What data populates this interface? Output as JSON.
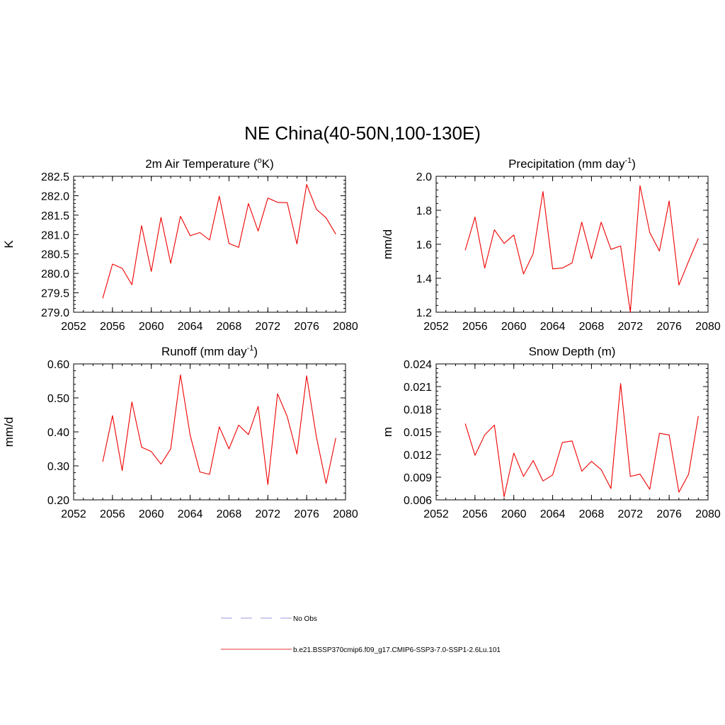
{
  "figure": {
    "title": "NE China(40-50N,100-130E)"
  },
  "legend": [
    {
      "label": "No Obs",
      "style": "dashed",
      "color": "#9999dd"
    },
    {
      "label": "b.e21.BSSP370cmip6.f09_g17.CMIP6-SSP3-7.0-SSP1-2.6Lu.101",
      "style": "solid",
      "color": "#ee3333"
    }
  ],
  "series_color": "#ee0000",
  "chart_data": [
    {
      "type": "line",
      "title_parts": [
        "2m Air Temperature (",
        "o",
        "K)"
      ],
      "ylabel": "K",
      "xlim": [
        2052,
        2080
      ],
      "xticks": [
        2052,
        2056,
        2060,
        2064,
        2068,
        2072,
        2076,
        2080
      ],
      "ylim": [
        279.0,
        282.5
      ],
      "yticks": [
        279.0,
        279.5,
        280.0,
        280.5,
        281.0,
        281.5,
        282.0,
        282.5
      ],
      "ytick_labels": [
        "279.0",
        "279.5",
        "280.0",
        "280.5",
        "281.0",
        "281.5",
        "282.0",
        "282.5"
      ],
      "x": [
        2055,
        2056,
        2057,
        2058,
        2059,
        2060,
        2061,
        2062,
        2063,
        2064,
        2065,
        2066,
        2067,
        2068,
        2069,
        2070,
        2071,
        2072,
        2073,
        2074,
        2075,
        2076,
        2077,
        2078,
        2079
      ],
      "values": [
        279.36,
        280.24,
        280.13,
        279.71,
        281.23,
        280.05,
        281.44,
        280.26,
        281.47,
        280.97,
        281.05,
        280.86,
        281.99,
        280.77,
        280.67,
        281.8,
        281.09,
        281.94,
        281.83,
        281.82,
        280.76,
        282.29,
        281.65,
        281.43,
        281.01
      ]
    },
    {
      "type": "line",
      "title_parts": [
        "Precipitation (mm day",
        "-1",
        ")"
      ],
      "ylabel": "mm/d",
      "xlim": [
        2052,
        2080
      ],
      "xticks": [
        2052,
        2056,
        2060,
        2064,
        2068,
        2072,
        2076,
        2080
      ],
      "ylim": [
        1.2,
        2.0
      ],
      "yticks": [
        1.2,
        1.4,
        1.6,
        1.8,
        2.0
      ],
      "ytick_labels": [
        "1.2",
        "1.4",
        "1.6",
        "1.8",
        "2.0"
      ],
      "x": [
        2055,
        2056,
        2057,
        2058,
        2059,
        2060,
        2061,
        2062,
        2063,
        2064,
        2065,
        2066,
        2067,
        2068,
        2069,
        2070,
        2071,
        2072,
        2073,
        2074,
        2075,
        2076,
        2077,
        2078,
        2079
      ],
      "values": [
        1.565,
        1.76,
        1.46,
        1.685,
        1.605,
        1.655,
        1.425,
        1.545,
        1.91,
        1.455,
        1.46,
        1.49,
        1.73,
        1.515,
        1.73,
        1.57,
        1.59,
        1.2,
        1.945,
        1.67,
        1.56,
        1.855,
        1.36,
        1.5,
        1.635
      ]
    },
    {
      "type": "line",
      "title_parts": [
        "Runoff (mm day",
        "-1",
        ")"
      ],
      "ylabel": "mm/d",
      "xlim": [
        2052,
        2080
      ],
      "xticks": [
        2052,
        2056,
        2060,
        2064,
        2068,
        2072,
        2076,
        2080
      ],
      "ylim": [
        0.2,
        0.6
      ],
      "yticks": [
        0.2,
        0.3,
        0.4,
        0.5,
        0.6
      ],
      "ytick_labels": [
        "0.20",
        "0.30",
        "0.40",
        "0.50",
        "0.60"
      ],
      "x": [
        2055,
        2056,
        2057,
        2058,
        2059,
        2060,
        2061,
        2062,
        2063,
        2064,
        2065,
        2066,
        2067,
        2068,
        2069,
        2070,
        2071,
        2072,
        2073,
        2074,
        2075,
        2076,
        2077,
        2078,
        2079
      ],
      "values": [
        0.312,
        0.448,
        0.286,
        0.488,
        0.355,
        0.342,
        0.305,
        0.35,
        0.568,
        0.39,
        0.282,
        0.275,
        0.415,
        0.35,
        0.42,
        0.392,
        0.475,
        0.245,
        0.512,
        0.445,
        0.335,
        0.565,
        0.385,
        0.248,
        0.382
      ]
    },
    {
      "type": "line",
      "title_parts": [
        "Snow Depth (m)"
      ],
      "ylabel": "m",
      "xlim": [
        2052,
        2080
      ],
      "xticks": [
        2052,
        2056,
        2060,
        2064,
        2068,
        2072,
        2076,
        2080
      ],
      "ylim": [
        0.006,
        0.024
      ],
      "yticks": [
        0.006,
        0.009,
        0.012,
        0.015,
        0.018,
        0.021,
        0.024
      ],
      "ytick_labels": [
        "0.006",
        "0.009",
        "0.012",
        "0.015",
        "0.018",
        "0.021",
        "0.024"
      ],
      "x": [
        2055,
        2056,
        2057,
        2058,
        2059,
        2060,
        2061,
        2062,
        2063,
        2064,
        2065,
        2066,
        2067,
        2068,
        2069,
        2070,
        2071,
        2072,
        2073,
        2074,
        2075,
        2076,
        2077,
        2078,
        2079
      ],
      "values": [
        0.0161,
        0.0119,
        0.0146,
        0.0159,
        0.0064,
        0.0122,
        0.0091,
        0.0112,
        0.0085,
        0.0093,
        0.0136,
        0.0138,
        0.0098,
        0.0111,
        0.01,
        0.0075,
        0.0214,
        0.0091,
        0.0094,
        0.0074,
        0.0148,
        0.0146,
        0.007,
        0.0094,
        0.0171
      ]
    }
  ]
}
